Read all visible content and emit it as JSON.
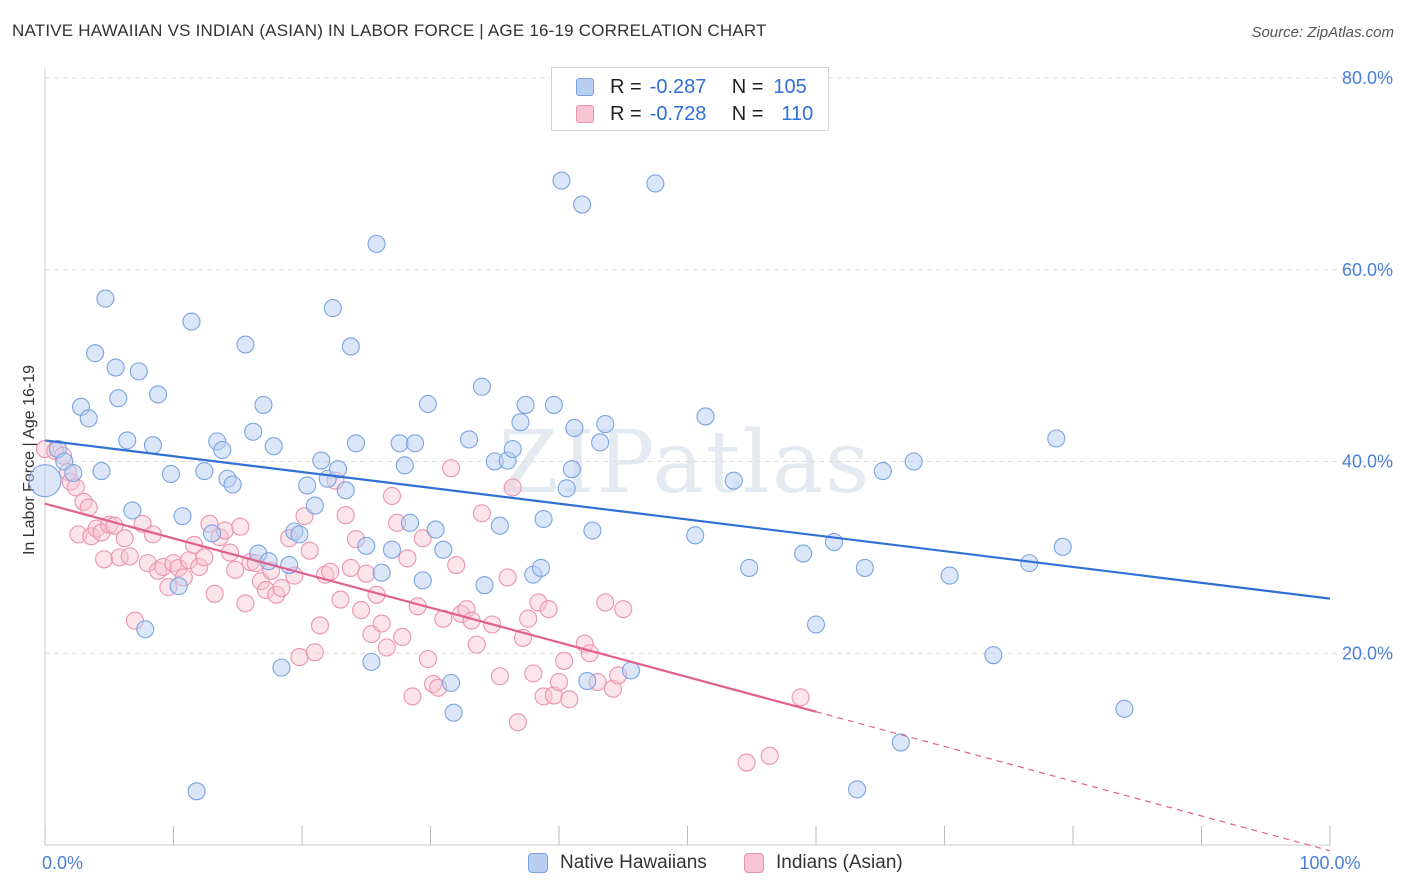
{
  "title": "NATIVE HAWAIIAN VS INDIAN (ASIAN) IN LABOR FORCE | AGE 16-19 CORRELATION CHART",
  "source": "Source: ZipAtlas.com",
  "watermark": "ZIPatlas",
  "legend_top": {
    "rows": [
      {
        "r_label": "R =",
        "r_value": "-0.287",
        "n_label": "N =",
        "n_value": "105"
      },
      {
        "r_label": "R =",
        "r_value": "-0.728",
        "n_label": "N =",
        "n_value": "110"
      }
    ]
  },
  "legend_bottom": {
    "items": [
      "Native Hawaiians",
      "Indians (Asian)"
    ]
  },
  "colors": {
    "blue_fill": "#b8cff2",
    "blue_stroke": "#7aa3e2",
    "blue_line": "#2f6fd6",
    "pink_fill": "#f8c3d3",
    "pink_stroke": "#eb93ae",
    "pink_line": "#e0608e",
    "grid": "#dddddd",
    "tick_text": "#4a7fd6"
  },
  "chart_data": {
    "type": "scatter",
    "title": "NATIVE HAWAIIAN VS INDIAN (ASIAN) IN LABOR FORCE | AGE 16-19 CORRELATION CHART",
    "xlabel": "",
    "ylabel": "In Labor Force | Age 16-19",
    "xlim": [
      0,
      100
    ],
    "ylim": [
      0,
      80
    ],
    "y_ticks": [
      {
        "value": 20,
        "label": "20.0%"
      },
      {
        "value": 40,
        "label": "40.0%"
      },
      {
        "value": 60,
        "label": "60.0%"
      },
      {
        "value": 80,
        "label": "80.0%"
      }
    ],
    "x_tick_values": [
      0,
      10,
      20,
      30,
      40,
      50,
      60,
      70,
      80,
      90,
      100
    ],
    "x_tick_labels": [
      {
        "value": 0,
        "label": "0.0%"
      },
      {
        "value": 100,
        "label": "100.0%"
      }
    ],
    "grid": true,
    "series": [
      {
        "name": "Native Hawaiians",
        "R": -0.287,
        "N": 105,
        "trend": {
          "x": [
            0,
            100
          ],
          "y": [
            42.2,
            25.7
          ]
        },
        "points": [
          [
            0.0,
            38.0
          ],
          [
            1.0,
            41.3
          ],
          [
            1.5,
            40.0
          ],
          [
            2.2,
            38.8
          ],
          [
            2.8,
            45.7
          ],
          [
            3.4,
            44.5
          ],
          [
            3.9,
            51.3
          ],
          [
            4.4,
            39.0
          ],
          [
            4.7,
            57.0
          ],
          [
            5.5,
            49.8
          ],
          [
            5.7,
            46.6
          ],
          [
            6.4,
            42.2
          ],
          [
            6.8,
            34.9
          ],
          [
            7.3,
            49.4
          ],
          [
            7.8,
            22.5
          ],
          [
            8.4,
            41.7
          ],
          [
            8.8,
            47.0
          ],
          [
            9.8,
            38.7
          ],
          [
            10.4,
            27.0
          ],
          [
            10.7,
            34.3
          ],
          [
            11.4,
            54.6
          ],
          [
            11.8,
            5.6
          ],
          [
            12.4,
            39.0
          ],
          [
            13.0,
            32.5
          ],
          [
            13.4,
            42.1
          ],
          [
            13.8,
            41.2
          ],
          [
            14.2,
            38.2
          ],
          [
            14.6,
            37.6
          ],
          [
            15.6,
            52.2
          ],
          [
            16.2,
            43.1
          ],
          [
            16.6,
            30.4
          ],
          [
            17.0,
            45.9
          ],
          [
            17.4,
            29.6
          ],
          [
            17.8,
            41.6
          ],
          [
            18.4,
            18.5
          ],
          [
            19.0,
            29.2
          ],
          [
            19.4,
            32.7
          ],
          [
            19.8,
            32.4
          ],
          [
            20.4,
            37.5
          ],
          [
            21.0,
            35.4
          ],
          [
            21.5,
            40.1
          ],
          [
            22.0,
            38.2
          ],
          [
            22.4,
            56.0
          ],
          [
            22.8,
            39.2
          ],
          [
            23.4,
            37.0
          ],
          [
            23.8,
            52.0
          ],
          [
            24.2,
            41.9
          ],
          [
            25.0,
            31.2
          ],
          [
            25.4,
            19.1
          ],
          [
            25.8,
            62.7
          ],
          [
            26.2,
            28.4
          ],
          [
            27.0,
            30.8
          ],
          [
            27.6,
            41.9
          ],
          [
            28.0,
            39.6
          ],
          [
            28.4,
            33.6
          ],
          [
            28.8,
            41.9
          ],
          [
            29.4,
            27.6
          ],
          [
            29.8,
            46.0
          ],
          [
            30.4,
            32.9
          ],
          [
            31.0,
            30.8
          ],
          [
            31.6,
            16.9
          ],
          [
            31.8,
            13.8
          ],
          [
            33.0,
            42.3
          ],
          [
            34.0,
            47.8
          ],
          [
            34.2,
            27.1
          ],
          [
            35.0,
            40.0
          ],
          [
            35.4,
            33.3
          ],
          [
            36.0,
            40.1
          ],
          [
            36.4,
            41.3
          ],
          [
            37.0,
            44.1
          ],
          [
            37.4,
            45.9
          ],
          [
            38.0,
            28.2
          ],
          [
            38.6,
            28.9
          ],
          [
            38.8,
            34.0
          ],
          [
            39.6,
            45.9
          ],
          [
            40.2,
            69.3
          ],
          [
            40.6,
            37.2
          ],
          [
            41.0,
            39.2
          ],
          [
            41.2,
            43.5
          ],
          [
            41.8,
            66.8
          ],
          [
            42.2,
            17.1
          ],
          [
            42.6,
            32.8
          ],
          [
            43.2,
            42.0
          ],
          [
            43.6,
            43.9
          ],
          [
            45.6,
            18.2
          ],
          [
            50.6,
            32.3
          ],
          [
            51.4,
            44.7
          ],
          [
            53.6,
            38.0
          ],
          [
            54.8,
            28.9
          ],
          [
            59.0,
            30.4
          ],
          [
            60.0,
            23.0
          ],
          [
            61.4,
            31.6
          ],
          [
            63.2,
            5.8
          ],
          [
            63.8,
            28.9
          ],
          [
            65.2,
            39.0
          ],
          [
            66.6,
            10.7
          ],
          [
            67.6,
            40.0
          ],
          [
            70.4,
            28.1
          ],
          [
            73.8,
            19.8
          ],
          [
            76.6,
            29.4
          ],
          [
            79.2,
            31.1
          ],
          [
            84.0,
            14.2
          ],
          [
            78.7,
            42.4
          ],
          [
            47.5,
            69.0
          ]
        ]
      },
      {
        "name": "Indians (Asian)",
        "R": -0.728,
        "N": 110,
        "trend": {
          "x": [
            0,
            60
          ],
          "y": [
            35.6,
            13.9
          ]
        },
        "trend_dashed": {
          "x": [
            60,
            100
          ],
          "y": [
            13.9,
            -0.6
          ]
        },
        "points": [
          [
            0.0,
            41.3
          ],
          [
            0.8,
            41.1
          ],
          [
            1.4,
            40.6
          ],
          [
            1.8,
            38.9
          ],
          [
            2.0,
            37.9
          ],
          [
            2.4,
            37.3
          ],
          [
            2.6,
            32.4
          ],
          [
            3.0,
            35.8
          ],
          [
            3.4,
            35.2
          ],
          [
            3.6,
            32.2
          ],
          [
            4.0,
            33.0
          ],
          [
            4.4,
            32.6
          ],
          [
            4.6,
            29.8
          ],
          [
            5.0,
            33.4
          ],
          [
            5.4,
            33.3
          ],
          [
            5.8,
            30.0
          ],
          [
            6.2,
            32.0
          ],
          [
            6.6,
            30.1
          ],
          [
            7.0,
            23.4
          ],
          [
            7.6,
            33.5
          ],
          [
            8.0,
            29.4
          ],
          [
            8.4,
            32.4
          ],
          [
            8.8,
            28.6
          ],
          [
            9.2,
            29.0
          ],
          [
            9.6,
            26.9
          ],
          [
            10.0,
            29.4
          ],
          [
            10.4,
            28.9
          ],
          [
            10.8,
            27.9
          ],
          [
            11.2,
            29.7
          ],
          [
            11.6,
            31.3
          ],
          [
            12.0,
            29.0
          ],
          [
            12.4,
            30.0
          ],
          [
            12.8,
            33.5
          ],
          [
            13.2,
            26.2
          ],
          [
            13.6,
            32.1
          ],
          [
            14.0,
            32.8
          ],
          [
            14.4,
            30.5
          ],
          [
            14.8,
            28.7
          ],
          [
            15.2,
            33.2
          ],
          [
            15.6,
            25.2
          ],
          [
            16.0,
            29.5
          ],
          [
            16.4,
            29.4
          ],
          [
            16.8,
            27.5
          ],
          [
            17.2,
            26.6
          ],
          [
            17.6,
            28.6
          ],
          [
            18.0,
            26.1
          ],
          [
            18.4,
            26.8
          ],
          [
            19.0,
            32.0
          ],
          [
            19.4,
            28.1
          ],
          [
            19.8,
            19.6
          ],
          [
            20.2,
            34.3
          ],
          [
            20.6,
            30.7
          ],
          [
            21.0,
            20.1
          ],
          [
            21.4,
            22.9
          ],
          [
            21.8,
            28.2
          ],
          [
            22.2,
            28.5
          ],
          [
            22.6,
            38.0
          ],
          [
            23.0,
            25.6
          ],
          [
            23.4,
            34.4
          ],
          [
            23.8,
            28.9
          ],
          [
            24.2,
            31.9
          ],
          [
            24.6,
            24.5
          ],
          [
            25.0,
            28.3
          ],
          [
            25.4,
            22.0
          ],
          [
            25.8,
            26.1
          ],
          [
            26.2,
            23.1
          ],
          [
            26.6,
            20.6
          ],
          [
            27.0,
            36.4
          ],
          [
            27.4,
            33.6
          ],
          [
            27.8,
            21.7
          ],
          [
            28.2,
            29.9
          ],
          [
            28.6,
            15.5
          ],
          [
            29.0,
            24.9
          ],
          [
            29.4,
            32.0
          ],
          [
            29.8,
            19.4
          ],
          [
            30.2,
            16.8
          ],
          [
            30.6,
            16.4
          ],
          [
            31.0,
            23.6
          ],
          [
            31.6,
            39.3
          ],
          [
            32.0,
            29.2
          ],
          [
            32.4,
            24.1
          ],
          [
            32.8,
            24.6
          ],
          [
            33.2,
            23.4
          ],
          [
            33.6,
            20.9
          ],
          [
            34.0,
            34.6
          ],
          [
            34.8,
            23.0
          ],
          [
            35.4,
            17.6
          ],
          [
            36.0,
            27.9
          ],
          [
            36.4,
            37.3
          ],
          [
            36.8,
            12.8
          ],
          [
            37.2,
            21.6
          ],
          [
            37.6,
            23.6
          ],
          [
            38.0,
            17.9
          ],
          [
            38.4,
            25.3
          ],
          [
            38.8,
            15.5
          ],
          [
            39.2,
            24.6
          ],
          [
            39.6,
            15.6
          ],
          [
            40.0,
            17.0
          ],
          [
            40.4,
            19.2
          ],
          [
            40.8,
            15.2
          ],
          [
            42.0,
            21.0
          ],
          [
            42.4,
            20.0
          ],
          [
            43.0,
            17.0
          ],
          [
            43.6,
            25.3
          ],
          [
            44.2,
            16.3
          ],
          [
            44.6,
            17.7
          ],
          [
            45.0,
            24.6
          ],
          [
            54.6,
            8.6
          ],
          [
            56.4,
            9.3
          ],
          [
            58.8,
            15.4
          ]
        ]
      }
    ]
  }
}
